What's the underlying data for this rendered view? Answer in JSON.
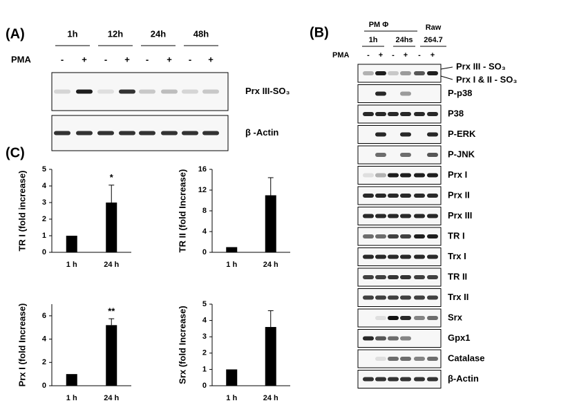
{
  "panel_a": {
    "label": "(A)",
    "times": [
      "1h",
      "12h",
      "24h",
      "48h"
    ],
    "pma_label": "PMA",
    "pma_signs": [
      "-",
      "+",
      "-",
      "+",
      "-",
      "+",
      "-",
      "+"
    ],
    "blots": [
      "Prx III-SO₃",
      "β -Actin"
    ]
  },
  "panel_b": {
    "label": "(B)",
    "group_label": "PM Φ",
    "raw_label": [
      "Raw",
      "264.7"
    ],
    "times": [
      "1h",
      "24hs"
    ],
    "pma_label": "PMA",
    "pma_signs": [
      "-",
      "+",
      "-",
      "+",
      "-",
      "+"
    ],
    "top_labels": [
      "Prx III - SO₃",
      "Prx I & II - SO₃"
    ],
    "blots": [
      "P-p38",
      "P38",
      "P-ERK",
      "P-JNK",
      "Prx I",
      "Prx II",
      "Prx III",
      "TR I",
      "Trx I",
      "TR II",
      "Trx II",
      "Srx",
      "Gpx1",
      "Catalase",
      "β-Actin"
    ]
  },
  "panel_c_label": "(C)",
  "chart_data": [
    {
      "type": "bar",
      "y_label": "TR I (fold increase)",
      "categories": [
        "1 h",
        "24 h"
      ],
      "values": [
        1,
        3
      ],
      "errors": [
        null,
        1.05
      ],
      "annotation": "*",
      "color": "#000000",
      "ylim": [
        0,
        5
      ],
      "yticks": [
        0,
        1,
        2,
        3,
        4,
        5
      ]
    },
    {
      "type": "bar",
      "y_label": "TR II (fold Increase)",
      "categories": [
        "1 h",
        "24 h"
      ],
      "values": [
        1,
        11
      ],
      "errors": [
        null,
        3.4
      ],
      "color": "#000000",
      "ylim": [
        0,
        16
      ],
      "yticks": [
        0,
        4,
        8,
        12,
        16
      ]
    },
    {
      "type": "bar",
      "y_label": "Prx I (fold Increase)",
      "categories": [
        "1 h",
        "24 h"
      ],
      "values": [
        1,
        5.2
      ],
      "errors": [
        null,
        0.55
      ],
      "annotation": "**",
      "color": "#000000",
      "ylim": [
        0,
        7
      ],
      "yticks": [
        0,
        2,
        4,
        6
      ]
    },
    {
      "type": "bar",
      "y_label": "Srx  (fold Increase)",
      "categories": [
        "1 h",
        "24 h"
      ],
      "values": [
        1,
        3.6
      ],
      "errors": [
        null,
        1.0
      ],
      "color": "#000000",
      "ylim": [
        0,
        5
      ],
      "yticks": [
        0,
        1,
        2,
        3,
        4,
        5
      ]
    }
  ]
}
